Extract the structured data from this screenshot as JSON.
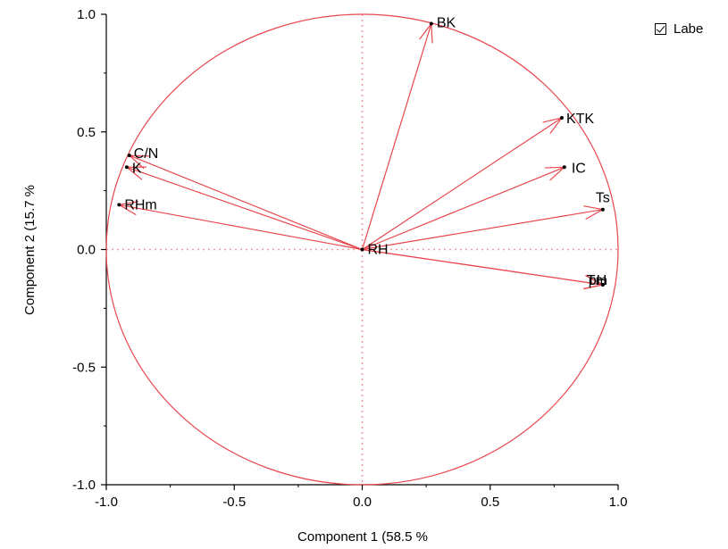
{
  "chart_data": {
    "type": "scatter",
    "subtype": "pca-correlation-circle",
    "xlabel": "Component 1  (58.5 %",
    "ylabel": "Component 2  (15.7 %",
    "xlim": [
      -1.0,
      1.0
    ],
    "ylim": [
      -1.0,
      1.0
    ],
    "x_ticks": [
      "-1.0",
      "-0.5",
      "0.0",
      "0.5",
      "1.0"
    ],
    "y_ticks": [
      "1.0",
      "0.5",
      "0.0",
      "-0.5",
      "-1.0"
    ],
    "unit_circle": true,
    "legend": {
      "label": "Labe",
      "checked": true,
      "position": "top-right outside"
    },
    "color": "#e8474f",
    "variables": [
      {
        "name": "BK",
        "x": 0.27,
        "y": 0.96
      },
      {
        "name": "KTK",
        "x": 0.78,
        "y": 0.56
      },
      {
        "name": "IC",
        "x": 0.79,
        "y": 0.35
      },
      {
        "name": "Ts",
        "x": 0.94,
        "y": 0.17
      },
      {
        "name": "Tm",
        "x": 0.94,
        "y": -0.15
      },
      {
        "name": "pH",
        "x": 0.94,
        "y": -0.15
      },
      {
        "name": "C/N",
        "x": -0.91,
        "y": 0.4
      },
      {
        "name": "K",
        "x": -0.92,
        "y": 0.35
      },
      {
        "name": "RHm",
        "x": -0.95,
        "y": 0.19
      },
      {
        "name": "RH",
        "x": 0.0,
        "y": 0.0
      }
    ]
  }
}
